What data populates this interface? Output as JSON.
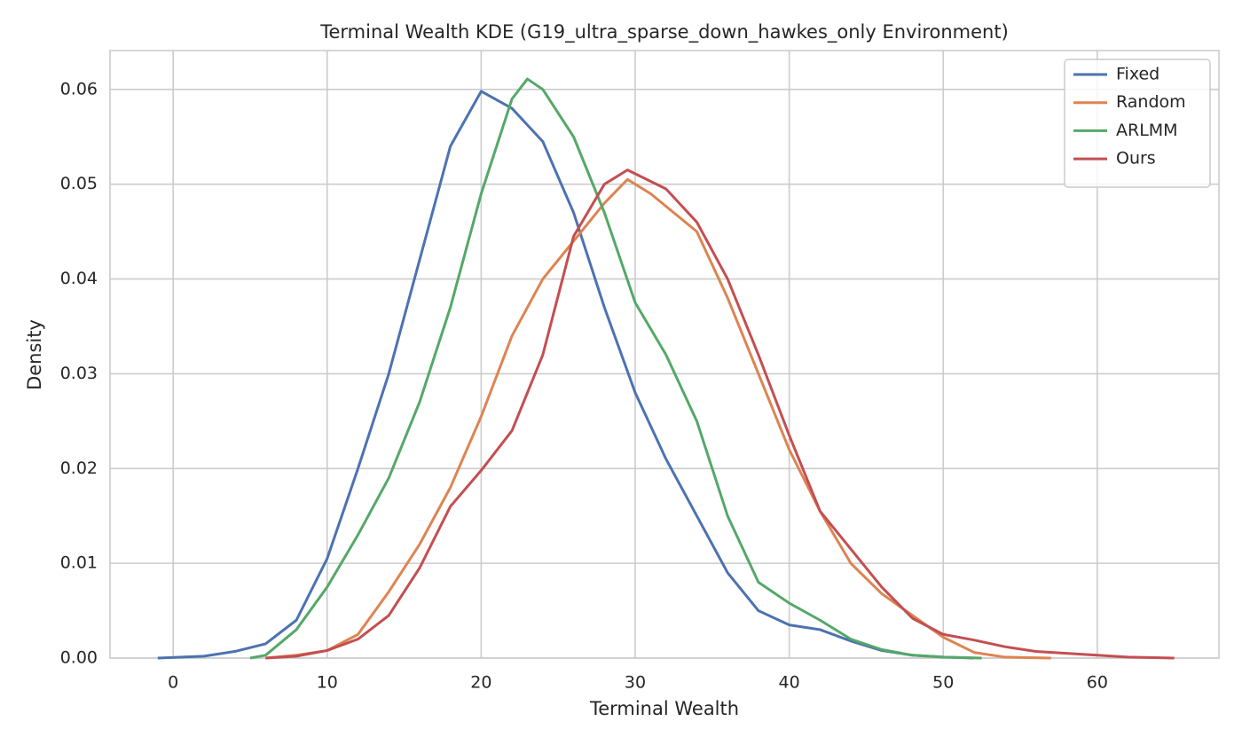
{
  "chart_data": {
    "type": "line",
    "title": "Terminal Wealth KDE (G19_ultra_sparse_down_hawkes_only Environment)",
    "x_label": "Terminal Wealth",
    "y_label": "Density",
    "xlim": [
      -4.1,
      67.9
    ],
    "ylim": [
      0,
      0.0641
    ],
    "xticks": [
      0,
      10,
      20,
      30,
      40,
      50,
      60
    ],
    "yticks": [
      {
        "value": 0,
        "label": "0.00"
      },
      0.01,
      0.02,
      0.03,
      0.04,
      0.05,
      0.06
    ],
    "grid": true,
    "legend": "upper right",
    "series": [
      {
        "name": "Fixed",
        "color": "#4c72b0",
        "x": [
          -1,
          2,
          4,
          6,
          8,
          10,
          12,
          14,
          16,
          18,
          20,
          22,
          24,
          26,
          28,
          30,
          32,
          34,
          36,
          38,
          40,
          42,
          44,
          46,
          48,
          50,
          52
        ],
        "values": [
          0,
          0.0002,
          0.0007,
          0.0015,
          0.004,
          0.0105,
          0.02,
          0.03,
          0.042,
          0.054,
          0.0598,
          0.058,
          0.0545,
          0.047,
          0.037,
          0.028,
          0.021,
          0.015,
          0.009,
          0.005,
          0.0035,
          0.003,
          0.0018,
          0.0008,
          0.0003,
          0.0001,
          0
        ]
      },
      {
        "name": "Random",
        "color": "#dd8452",
        "x": [
          6,
          8,
          10,
          12,
          14,
          16,
          18,
          20,
          22,
          24,
          26,
          28,
          29.5,
          31,
          34,
          36,
          38,
          40,
          42,
          44,
          46,
          48,
          50,
          52,
          54,
          57
        ],
        "values": [
          0,
          0.0003,
          0.0008,
          0.0025,
          0.007,
          0.012,
          0.018,
          0.0255,
          0.034,
          0.04,
          0.044,
          0.048,
          0.0505,
          0.049,
          0.045,
          0.038,
          0.03,
          0.022,
          0.0155,
          0.01,
          0.0068,
          0.0045,
          0.0022,
          0.0006,
          0.0001,
          0
        ]
      },
      {
        "name": "ARLMM",
        "color": "#55a868",
        "x": [
          5,
          6,
          8,
          10,
          12,
          14,
          16,
          18,
          20,
          22,
          23,
          24,
          26,
          28,
          30,
          32,
          34,
          36,
          38,
          40,
          42,
          44,
          46,
          48,
          50,
          52.5
        ],
        "values": [
          0,
          0.0003,
          0.003,
          0.0075,
          0.013,
          0.019,
          0.027,
          0.037,
          0.049,
          0.059,
          0.0611,
          0.06,
          0.055,
          0.047,
          0.0375,
          0.032,
          0.025,
          0.015,
          0.008,
          0.0058,
          0.004,
          0.002,
          0.0009,
          0.0003,
          0.0001,
          0
        ]
      },
      {
        "name": "Ours",
        "color": "#c44e52",
        "x": [
          6,
          8,
          10,
          12,
          14,
          16,
          18,
          20,
          22,
          24,
          26,
          28,
          29.5,
          32,
          34,
          36,
          38,
          40,
          42,
          44,
          46,
          48,
          50,
          52,
          54,
          56,
          58,
          60,
          62,
          65
        ],
        "values": [
          0,
          0.0002,
          0.0008,
          0.002,
          0.0045,
          0.0095,
          0.016,
          0.0198,
          0.024,
          0.032,
          0.0445,
          0.05,
          0.0515,
          0.0495,
          0.046,
          0.04,
          0.032,
          0.0235,
          0.0155,
          0.0115,
          0.0075,
          0.0042,
          0.0025,
          0.0019,
          0.0012,
          0.0007,
          0.0005,
          0.0003,
          0.0001,
          0
        ]
      }
    ]
  }
}
